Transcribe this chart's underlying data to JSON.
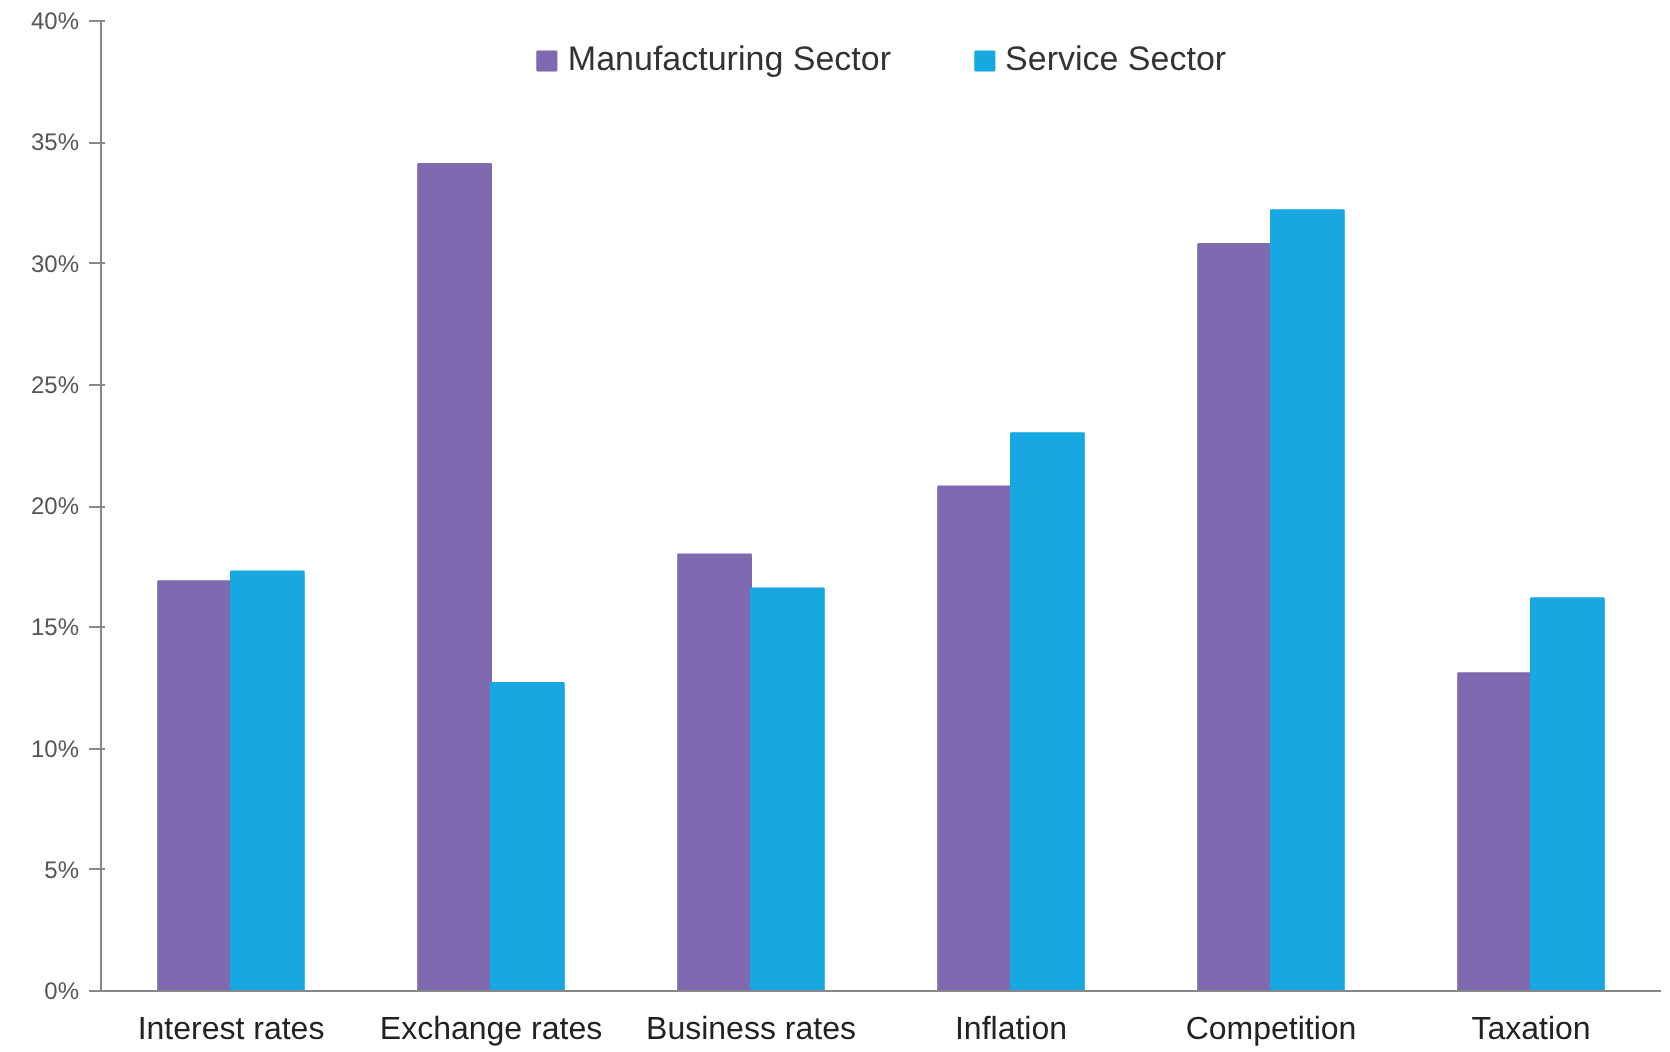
{
  "chart_data": {
    "type": "bar",
    "categories": [
      "Interest rates",
      "Exchange rates",
      "Business rates",
      "Inflation",
      "Competition",
      "Taxation"
    ],
    "series": [
      {
        "name": "Manufacturing Sector",
        "color": "#7f69b0",
        "values": [
          16.9,
          34.1,
          18.0,
          20.8,
          30.8,
          13.1
        ]
      },
      {
        "name": "Service Sector",
        "color": "#17a8e2",
        "values": [
          17.3,
          12.7,
          16.6,
          23.0,
          32.2,
          16.2
        ]
      }
    ],
    "ylim": [
      0,
      40
    ],
    "yticks": [
      {
        "value": 0,
        "label": "0%"
      },
      {
        "value": 5,
        "label": "5%"
      },
      {
        "value": 10,
        "label": "10%"
      },
      {
        "value": 15,
        "label": "15%"
      },
      {
        "value": 20,
        "label": "20%"
      },
      {
        "value": 25,
        "label": "25%"
      },
      {
        "value": 30,
        "label": "30%"
      },
      {
        "value": 35,
        "label": "35%"
      },
      {
        "value": 40,
        "label": "40%"
      }
    ],
    "grid": false,
    "legend": "top"
  }
}
